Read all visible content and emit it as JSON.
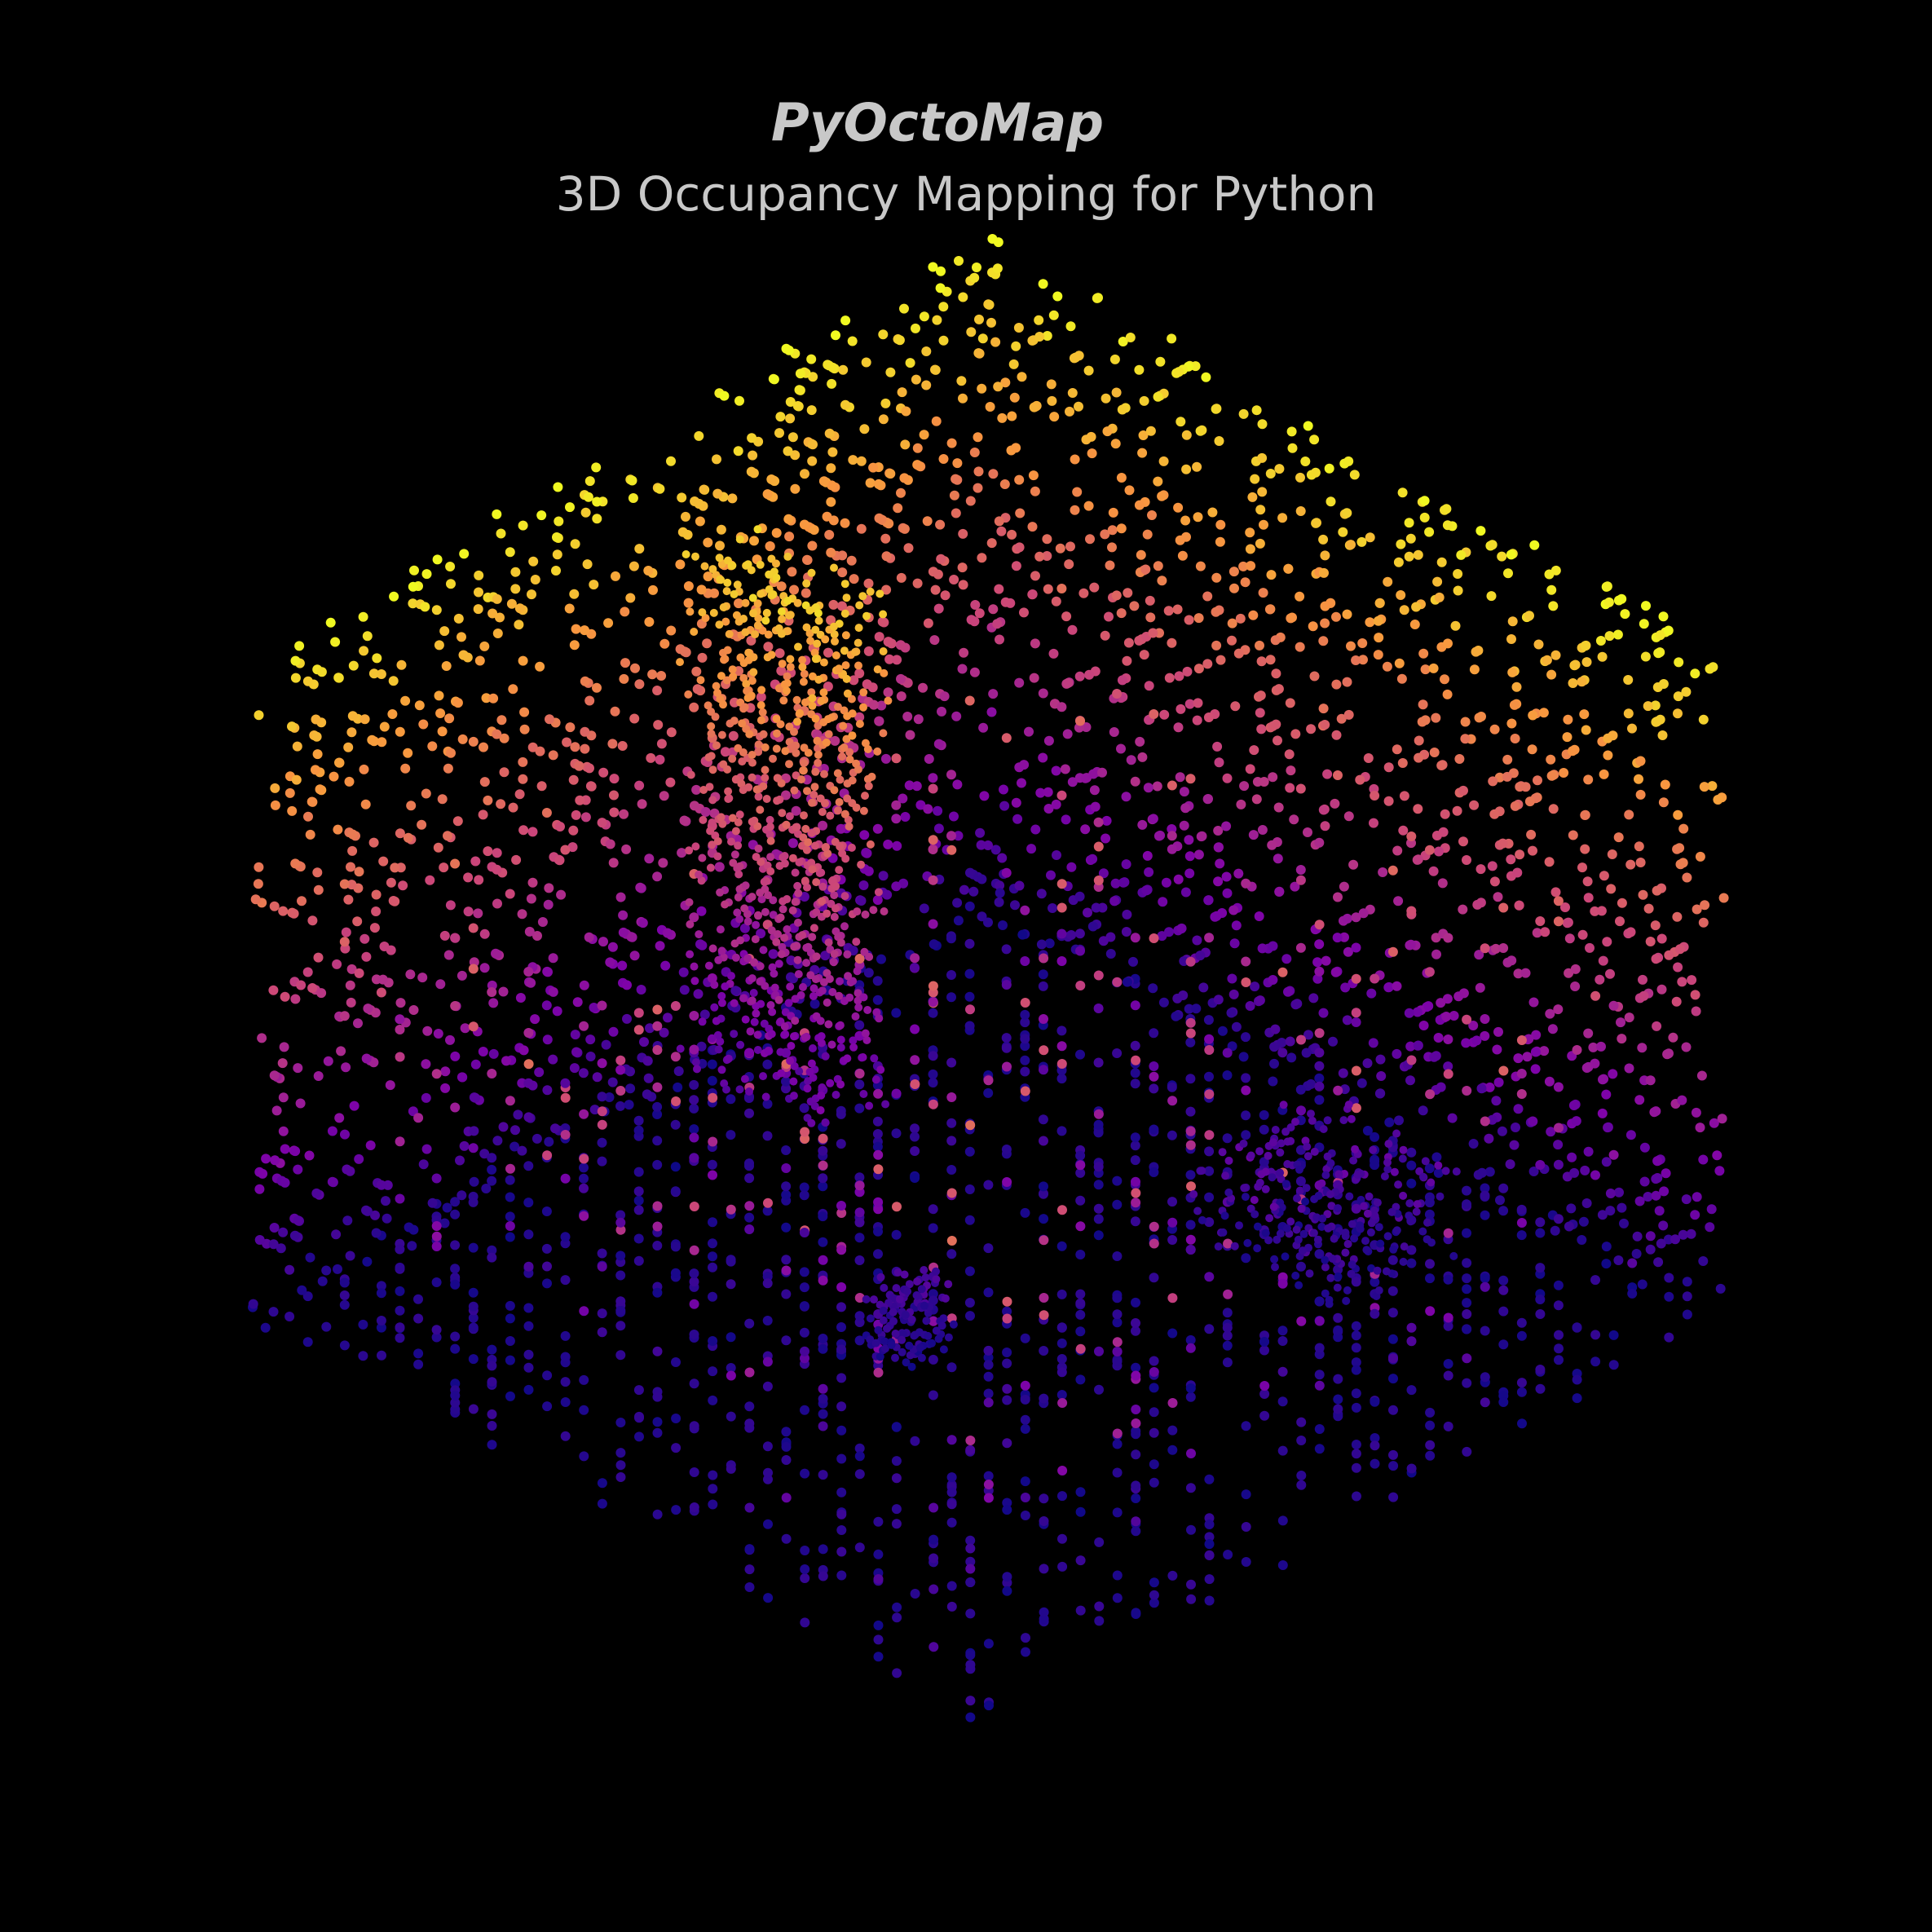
{
  "header": {
    "title": "PyOctoMap",
    "subtitle": "3D Occupancy Mapping for Python"
  }
}
